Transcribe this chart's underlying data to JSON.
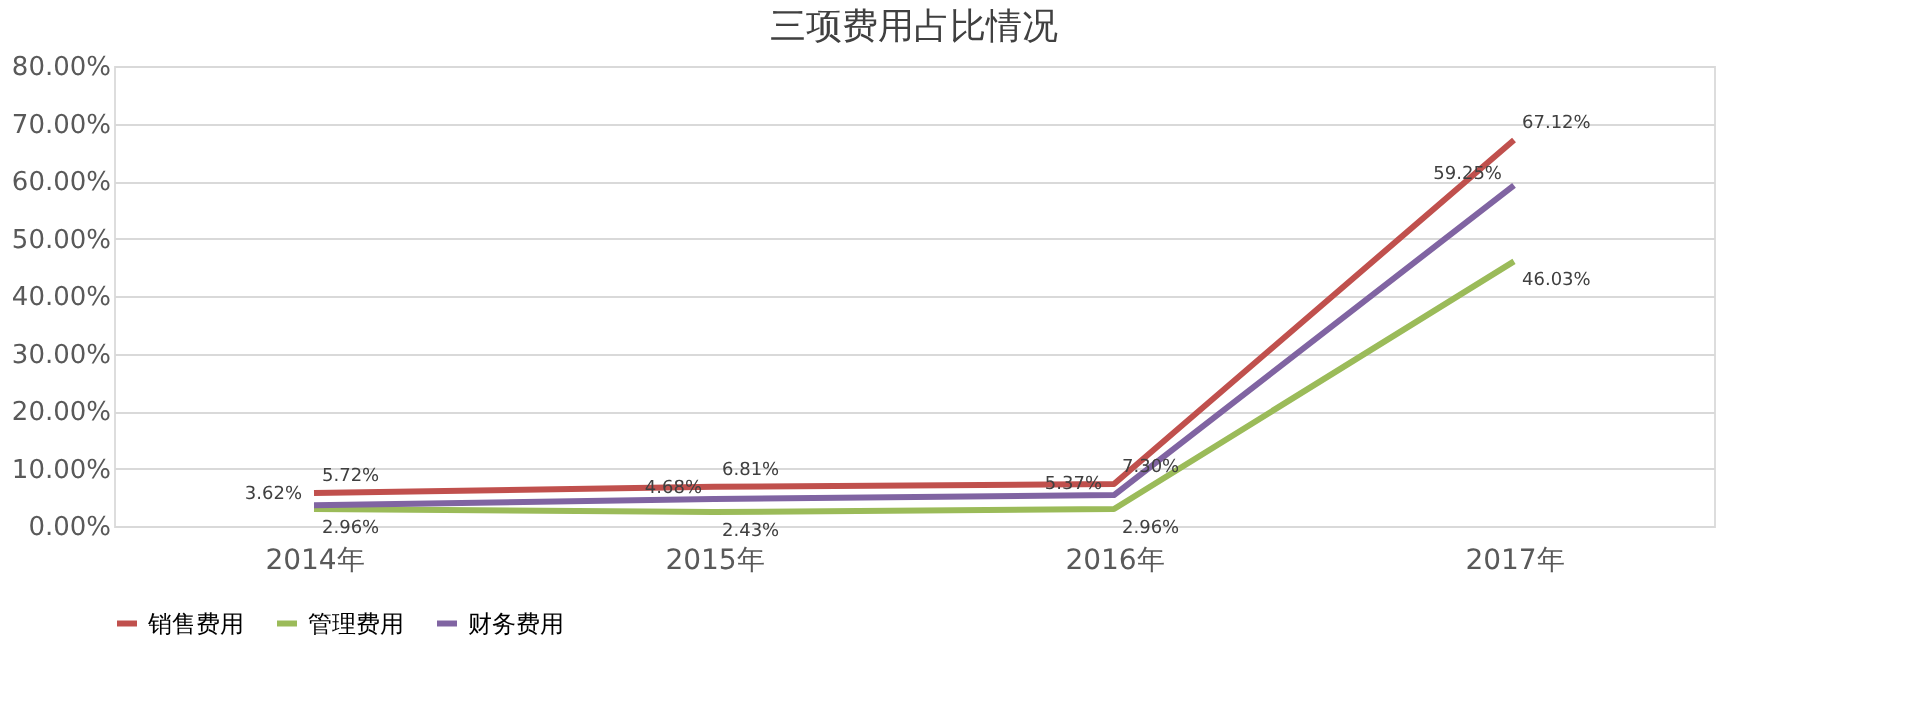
{
  "chart_data": {
    "type": "line",
    "title": "三项费用占比情况",
    "categories": [
      "2014年",
      "2015年",
      "2016年",
      "2017年"
    ],
    "series": [
      {
        "name": "销售费用",
        "color": "#c0504d",
        "values": [
          5.72,
          6.81,
          7.3,
          67.12
        ],
        "value_labels": [
          "5.72%",
          "6.81%",
          "7.30%",
          "67.12%"
        ]
      },
      {
        "name": "管理费用",
        "color": "#9bbb59",
        "values": [
          2.96,
          2.43,
          2.96,
          46.03
        ],
        "value_labels": [
          "2.96%",
          "2.43%",
          "2.96%",
          "46.03%"
        ]
      },
      {
        "name": "财务费用",
        "color": "#8064a2",
        "values": [
          3.62,
          4.68,
          5.37,
          59.25
        ],
        "value_labels": [
          "3.62%",
          "4.68%",
          "5.37%",
          "59.25%"
        ]
      }
    ],
    "ylim": [
      0,
      80
    ],
    "yticks": [
      {
        "value": 0,
        "label": "0.00%"
      },
      {
        "value": 10,
        "label": "10.00%"
      },
      {
        "value": 20,
        "label": "20.00%"
      },
      {
        "value": 30,
        "label": "30.00%"
      },
      {
        "value": 40,
        "label": "40.00%"
      },
      {
        "value": 50,
        "label": "50.00%"
      },
      {
        "value": 60,
        "label": "60.00%"
      },
      {
        "value": 70,
        "label": "70.00%"
      },
      {
        "value": 80,
        "label": "80.00%"
      }
    ],
    "grid": "y",
    "legend": "bottom",
    "marker": "none",
    "line_style": "solid"
  }
}
